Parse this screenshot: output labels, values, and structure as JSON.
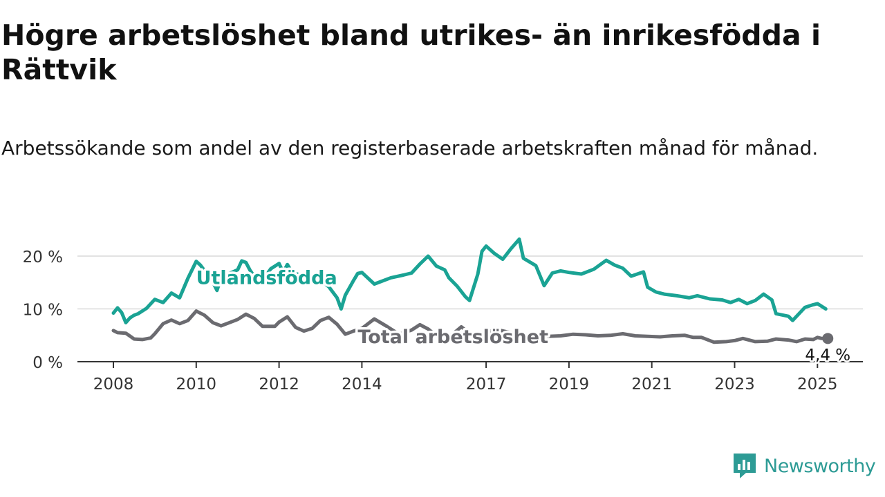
{
  "header": {
    "title": "Högre arbetslöshet bland utrikes- än inrikesfödda i Rättvik",
    "subtitle": "Arbetssökande som andel av den registerbaserade arbetskraften månad för månad."
  },
  "brand": {
    "name": "Newsworthy",
    "color": "#2d9b95",
    "icon": "newsworthy-logo-icon"
  },
  "chart_data": {
    "type": "line",
    "x_unit": "year",
    "ylim": [
      0,
      25
    ],
    "yticks": [
      0,
      10,
      20
    ],
    "ytick_labels": [
      "0 %",
      "10 %",
      "20 %"
    ],
    "xticks": [
      2008,
      2010,
      2012,
      2014,
      2017,
      2019,
      2021,
      2023,
      2025
    ],
    "xtick_labels": [
      "2008",
      "2010",
      "2012",
      "2014",
      "2017",
      "2019",
      "2021",
      "2023",
      "2025"
    ],
    "grid": true,
    "series": [
      {
        "name": "Utlandsfödda",
        "color": "#1aa394",
        "x": [
          2008.0,
          2008.1,
          2008.2,
          2008.3,
          2008.4,
          2008.5,
          2008.6,
          2008.8,
          2009.0,
          2009.2,
          2009.4,
          2009.6,
          2009.8,
          2009.9,
          2010.0,
          2010.1,
          2010.3,
          2010.4,
          2010.5,
          2010.6,
          2010.7,
          2010.8,
          2011.0,
          2011.1,
          2011.2,
          2011.3,
          2011.4,
          2011.6,
          2011.8,
          2012.0,
          2012.1,
          2012.2,
          2012.3,
          2012.4,
          2012.5,
          2012.8,
          2013.0,
          2013.2,
          2013.4,
          2013.5,
          2013.6,
          2013.8,
          2013.9,
          2014.0,
          2014.3,
          2014.7,
          2015.0,
          2015.2,
          2015.4,
          2015.6,
          2015.8,
          2016.0,
          2016.1,
          2016.3,
          2016.5,
          2016.6,
          2016.8,
          2016.9,
          2017.0,
          2017.2,
          2017.4,
          2017.6,
          2017.8,
          2017.9,
          2018.2,
          2018.4,
          2018.6,
          2018.8,
          2019.0,
          2019.3,
          2019.6,
          2019.9,
          2020.1,
          2020.3,
          2020.5,
          2020.8,
          2020.9,
          2021.1,
          2021.3,
          2021.6,
          2021.9,
          2022.1,
          2022.4,
          2022.7,
          2022.9,
          2023.1,
          2023.3,
          2023.5,
          2023.7,
          2023.9,
          2024.0,
          2024.3,
          2024.4,
          2024.7,
          2024.9,
          2025.0,
          2025.2
        ],
        "y": [
          9.2,
          10.2,
          9.3,
          7.4,
          8.3,
          8.8,
          9.1,
          10.1,
          11.8,
          11.2,
          13.0,
          12.1,
          15.8,
          17.4,
          19.0,
          18.3,
          16.2,
          15.1,
          13.5,
          15.8,
          15.0,
          16.7,
          17.4,
          19.1,
          18.8,
          17.3,
          16.2,
          15.4,
          17.6,
          18.6,
          16.9,
          18.4,
          17.1,
          16.7,
          16.4,
          15.6,
          15.5,
          14.2,
          12.1,
          10.0,
          12.6,
          15.4,
          16.7,
          16.9,
          14.7,
          15.9,
          16.4,
          16.8,
          18.5,
          20.0,
          18.1,
          17.4,
          15.9,
          14.3,
          12.3,
          11.6,
          16.6,
          20.9,
          21.9,
          20.5,
          19.4,
          21.4,
          23.2,
          19.6,
          18.2,
          14.4,
          16.8,
          17.2,
          16.9,
          16.6,
          17.5,
          19.2,
          18.3,
          17.7,
          16.2,
          17.0,
          14.1,
          13.2,
          12.8,
          12.5,
          12.1,
          12.5,
          11.9,
          11.7,
          11.2,
          11.8,
          11.0,
          11.6,
          12.8,
          11.7,
          9.1,
          8.6,
          7.8,
          10.3,
          10.8,
          11.0,
          10.0
        ]
      },
      {
        "name": "Total arbetslöshet",
        "color": "#6b6b70",
        "x": [
          2008.0,
          2008.1,
          2008.3,
          2008.5,
          2008.7,
          2008.9,
          2009.0,
          2009.2,
          2009.4,
          2009.6,
          2009.8,
          2010.0,
          2010.2,
          2010.4,
          2010.6,
          2010.8,
          2011.0,
          2011.2,
          2011.4,
          2011.6,
          2011.9,
          2012.0,
          2012.2,
          2012.4,
          2012.6,
          2012.8,
          2013.0,
          2013.2,
          2013.4,
          2013.6,
          2013.8,
          2014.0,
          2014.3,
          2014.6,
          2014.9,
          2015.2,
          2015.4,
          2015.6,
          2015.8,
          2016.0,
          2016.2,
          2016.4,
          2016.6,
          2016.8,
          2017.0,
          2017.3,
          2017.6,
          2017.9,
          2018.2,
          2018.5,
          2018.8,
          2019.1,
          2019.4,
          2019.7,
          2020.0,
          2020.3,
          2020.6,
          2020.9,
          2021.2,
          2021.5,
          2021.8,
          2022.0,
          2022.2,
          2022.5,
          2022.8,
          2023.0,
          2023.2,
          2023.5,
          2023.8,
          2024.0,
          2024.3,
          2024.5,
          2024.7,
          2024.9,
          2025.0,
          2025.1,
          2025.25
        ],
        "y": [
          5.9,
          5.5,
          5.4,
          4.3,
          4.2,
          4.5,
          5.3,
          7.2,
          7.9,
          7.2,
          7.8,
          9.6,
          8.8,
          7.4,
          6.8,
          7.4,
          8.0,
          9.0,
          8.2,
          6.7,
          6.7,
          7.5,
          8.5,
          6.5,
          5.8,
          6.3,
          7.8,
          8.4,
          7.1,
          5.2,
          5.8,
          6.3,
          8.1,
          6.7,
          5.2,
          6.0,
          7.0,
          6.2,
          4.9,
          4.6,
          5.3,
          6.6,
          5.4,
          4.0,
          5.7,
          6.0,
          5.5,
          5.1,
          5.0,
          4.8,
          4.9,
          5.2,
          5.1,
          4.9,
          5.0,
          5.3,
          4.9,
          4.8,
          4.7,
          4.9,
          5.0,
          4.6,
          4.6,
          3.7,
          3.8,
          4.0,
          4.4,
          3.8,
          3.9,
          4.3,
          4.1,
          3.8,
          4.3,
          4.2,
          4.6,
          4.4,
          4.4
        ]
      }
    ],
    "series_label_positions": [
      "2011.7,14.7",
      "2016.2,3.5"
    ],
    "end_label": "4,4 %"
  }
}
